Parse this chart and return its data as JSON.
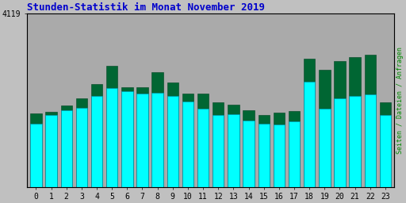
{
  "title": "Stunden-Statistik im Monat November 2019",
  "title_color": "#0000CC",
  "ylabel_right": "Seiten / Dateien / Anfragen",
  "ylabel_right_color": "#008800",
  "ytick_label": "4119",
  "ytick_value": 4119,
  "hours": [
    0,
    1,
    2,
    3,
    4,
    5,
    6,
    7,
    8,
    9,
    10,
    11,
    12,
    13,
    14,
    15,
    16,
    17,
    18,
    19,
    20,
    21,
    22,
    23
  ],
  "cyan_values": [
    1500,
    1700,
    1820,
    1880,
    2150,
    2350,
    2270,
    2220,
    2230,
    2150,
    2030,
    1850,
    1700,
    1720,
    1580,
    1500,
    1480,
    1550,
    2500,
    1850,
    2100,
    2160,
    2200,
    1700
  ],
  "green_values": [
    1750,
    1780,
    1940,
    2100,
    2450,
    2870,
    2370,
    2370,
    2720,
    2470,
    2210,
    2210,
    2000,
    1950,
    1820,
    1700,
    1760,
    1800,
    3050,
    2780,
    2980,
    3080,
    3130,
    2000
  ],
  "cyan_color": "#00FFFF",
  "green_color": "#006633",
  "cyan_edge": "#0088AA",
  "green_edge": "#004422",
  "bg_color": "#C0C0C0",
  "plot_bg_color": "#AAAAAA",
  "bar_width": 0.75,
  "ylim_max": 3400,
  "grid_color": "#999999",
  "font_family": "monospace",
  "title_fontsize": 9,
  "tick_fontsize": 7
}
